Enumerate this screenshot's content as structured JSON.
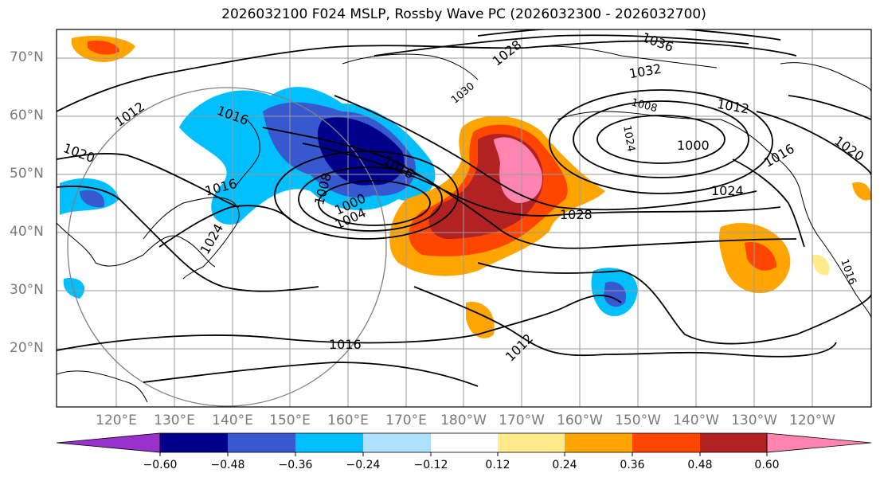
{
  "title": "2026032100 F024 MSLP, Rossby Wave PC (2026032300 - 2026032700)",
  "lat_labels": [
    "70°N",
    "60°N",
    "50°N",
    "40°N",
    "30°N",
    "20°N"
  ],
  "lon_labels": [
    "120°E",
    "130°E",
    "140°E",
    "150°E",
    "160°E",
    "170°E",
    "180°W",
    "170°W",
    "160°W",
    "150°W",
    "140°W",
    "130°W",
    "120°W"
  ],
  "colorbar": {
    "labels": [
      "−0.60",
      "−0.48",
      "−0.36",
      "−0.24",
      "−0.12",
      "0.12",
      "0.24",
      "0.36",
      "0.48",
      "0.60"
    ],
    "colors": [
      "#9932cc",
      "#00008b",
      "#3858cf",
      "#00bfff",
      "#b0e0ff",
      "#ffffff",
      "#ffeb8c",
      "#ffa500",
      "#ff4500",
      "#b22222",
      "#ff85b0"
    ]
  },
  "isobar_labels": [
    "1028",
    "1036",
    "1032",
    "1030",
    "1012",
    "1008",
    "1000",
    "1024",
    "1016",
    "1020",
    "1012",
    "1016",
    "1008",
    "1004",
    "1000",
    "1016",
    "1024",
    "1028",
    "1016",
    "1012",
    "1016",
    "1020",
    "1024",
    "1016"
  ]
}
